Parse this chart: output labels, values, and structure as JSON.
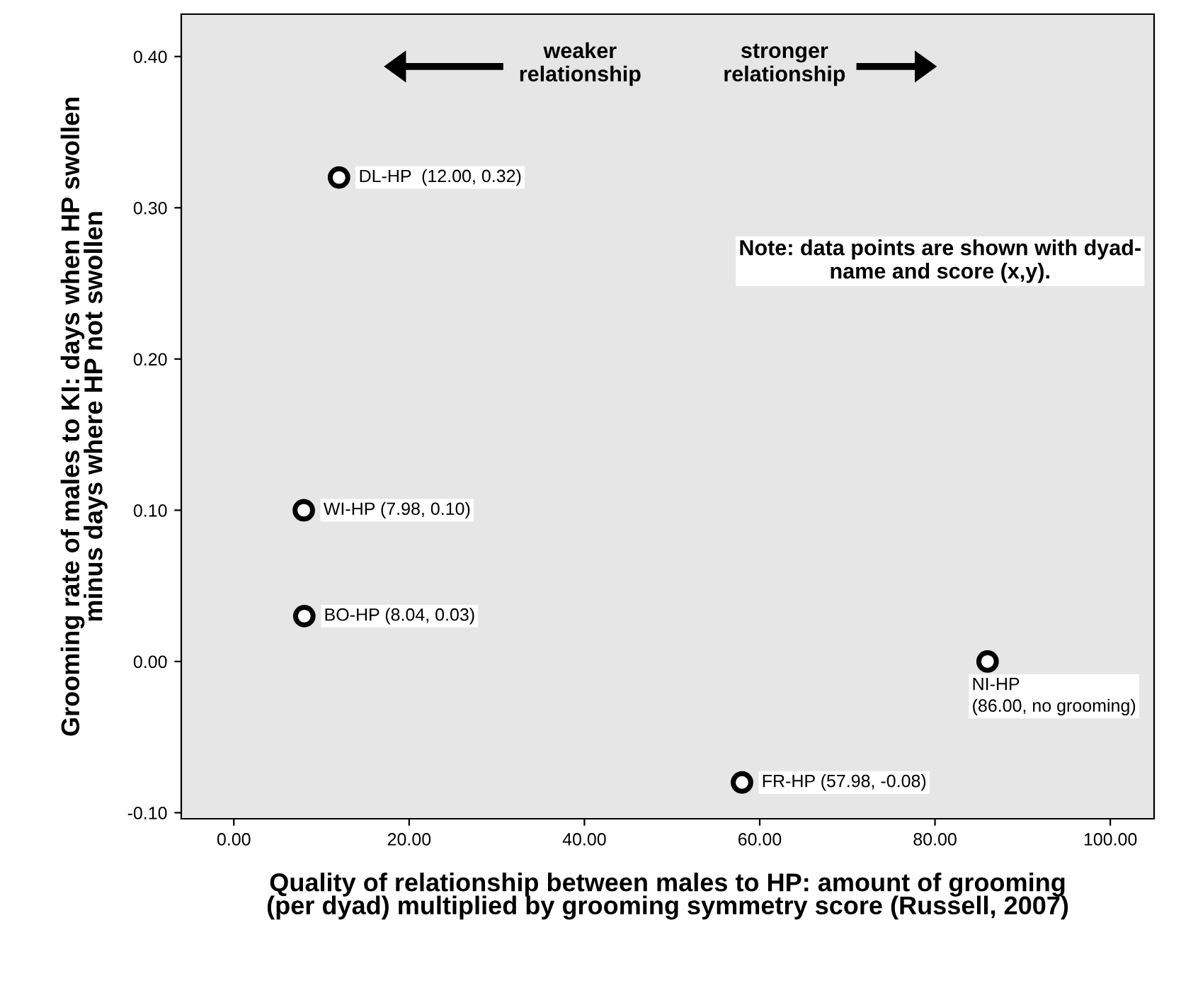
{
  "chart_data": {
    "type": "scatter",
    "xlabel": "Quality of relationship between males to HP: amount of grooming\n(per dyad) multiplied by grooming symmetry score (Russell, 2007)",
    "ylabel": "Grooming rate of males to KI: days when HP swollen\nminus days where HP not swollen",
    "x": [
      12.0,
      7.98,
      8.04,
      86.0,
      57.98
    ],
    "series": [
      {
        "color": "#000000",
        "values": [
          0.32,
          0.1,
          0.03,
          0.0,
          -0.08
        ]
      }
    ],
    "marker": "circle",
    "grid": false,
    "legend": false,
    "xlim": [
      -6,
      105
    ],
    "ylim": [
      -0.104,
      0.428
    ],
    "xticks": [
      {
        "value": 0,
        "label": "0.00"
      },
      {
        "value": 20,
        "label": "20.00"
      },
      {
        "value": 40,
        "label": "40.00"
      },
      {
        "value": 60,
        "label": "60.00"
      },
      {
        "value": 80,
        "label": "80.00"
      },
      {
        "value": 100,
        "label": "100.00"
      }
    ],
    "yticks": [
      {
        "value": -0.1,
        "label": "-0.10"
      },
      {
        "value": 0.0,
        "label": "0.00"
      },
      {
        "value": 0.1,
        "label": "0.10"
      },
      {
        "value": 0.2,
        "label": "0.20"
      },
      {
        "value": 0.3,
        "label": "0.30"
      },
      {
        "value": 0.4,
        "label": "0.40"
      }
    ],
    "annotations": [
      {
        "text": "DL-HP  (12.00, 0.32)",
        "x": 12.0,
        "y": 0.32
      },
      {
        "text": "WI-HP (7.98, 0.10)",
        "x": 7.98,
        "y": 0.1
      },
      {
        "text": "BO-HP (8.04, 0.03)",
        "x": 8.04,
        "y": 0.03
      },
      {
        "text": "NI-HP\n(86.00, no grooming)",
        "x": 86.0,
        "y": 0.0
      },
      {
        "text": "FR-HP (57.98, -0.08)",
        "x": 57.98,
        "y": -0.08
      },
      "weaker\nrelationship",
      "stronger\nrelationship",
      "Note: data points are shown with dyad-\nname and score (x,y)."
    ]
  }
}
